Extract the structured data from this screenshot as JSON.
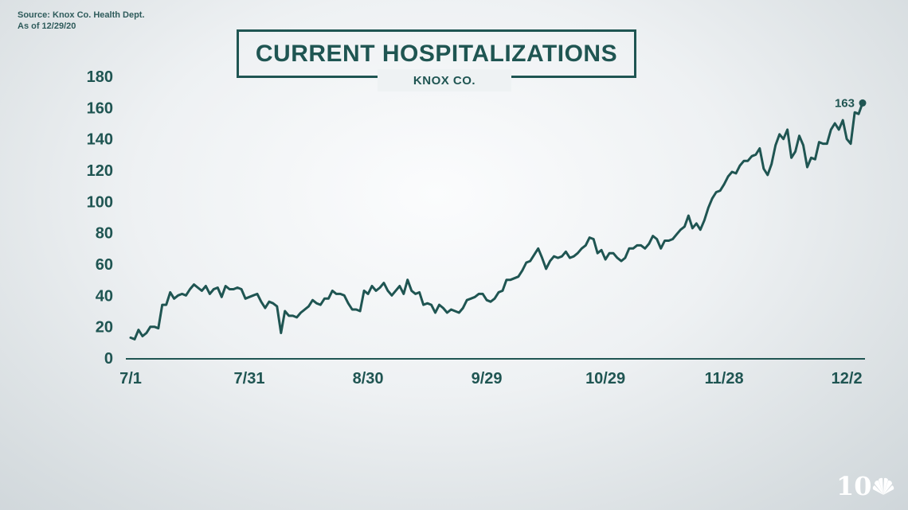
{
  "source": {
    "line1": "Source: Knox Co. Health Dept.",
    "line2": "As of 12/29/20"
  },
  "colors": {
    "line": "#1f5552",
    "text": "#1f5552",
    "axis": "#1f5552"
  },
  "logo": {
    "text": "10",
    "icon": "nbc-peacock-icon"
  },
  "chart_data": {
    "type": "line",
    "title": "CURRENT HOSPITALIZATIONS",
    "subtitle": "KNOX CO.",
    "xlabel": "",
    "ylabel": "",
    "ylim": [
      0,
      180
    ],
    "yticks": [
      0,
      20,
      40,
      60,
      80,
      100,
      120,
      140,
      160,
      180
    ],
    "xticks": [
      {
        "label": "7/1",
        "day": 0
      },
      {
        "label": "7/31",
        "day": 30
      },
      {
        "label": "8/30",
        "day": 60
      },
      {
        "label": "9/29",
        "day": 90
      },
      {
        "label": "10/29",
        "day": 120
      },
      {
        "label": "11/28",
        "day": 150
      },
      {
        "label": "12/2",
        "day": 181
      }
    ],
    "grid": false,
    "end_label": "163",
    "series": [
      {
        "values": [
          13,
          12,
          18,
          14,
          16,
          20,
          20,
          19,
          34,
          34,
          42,
          38,
          40,
          41,
          40,
          44,
          47,
          45,
          43,
          46,
          41,
          44,
          45,
          39,
          46,
          44,
          44,
          45,
          44,
          38,
          39,
          40,
          41,
          36,
          32,
          36,
          35,
          33,
          16,
          30,
          27,
          27,
          26,
          29,
          31,
          33,
          37,
          35,
          34,
          38,
          38,
          43,
          41,
          41,
          40,
          35,
          31,
          31,
          30,
          43,
          41,
          46,
          43,
          45,
          48,
          43,
          40,
          43,
          46,
          41,
          50,
          43,
          41,
          42,
          34,
          35,
          34,
          29,
          34,
          32,
          29,
          31,
          30,
          29,
          32,
          37,
          38,
          39,
          41,
          41,
          37,
          36,
          38,
          42,
          43,
          50,
          50,
          51,
          52,
          56,
          61,
          62,
          66,
          70,
          64,
          57,
          62,
          65,
          64,
          65,
          68,
          64,
          65,
          67,
          70,
          72,
          77,
          76,
          67,
          69,
          63,
          67,
          67,
          64,
          62,
          64,
          70,
          70,
          72,
          72,
          70,
          73,
          78,
          76,
          70,
          75,
          75,
          76,
          79,
          82,
          84,
          91,
          83,
          86,
          82,
          88,
          96,
          102,
          106,
          107,
          111,
          116,
          119,
          118,
          123,
          126,
          126,
          129,
          130,
          134,
          121,
          117,
          124,
          136,
          143,
          140,
          146,
          128,
          132,
          142,
          136,
          122,
          128,
          127,
          138,
          137,
          137,
          146,
          150,
          146,
          152,
          140,
          137,
          157,
          156,
          163
        ]
      }
    ]
  }
}
